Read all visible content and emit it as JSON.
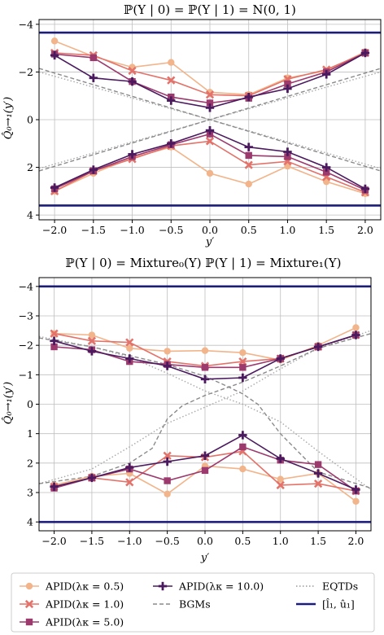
{
  "chart_data": [
    {
      "type": "line",
      "title": "ℙ(Y | 0) = ℙ(Y | 1) = N(0, 1)",
      "xlabel": "y′",
      "ylabel": "Q̂₀→₁(y′)",
      "x": [
        -2.0,
        -1.5,
        -1.0,
        -0.5,
        0.0,
        0.5,
        1.0,
        1.5,
        2.0
      ],
      "xticks": [
        "−2.0",
        "−1.5",
        "−1.0",
        "−0.5",
        "0.0",
        "0.5",
        "1.0",
        "1.5",
        "2.0"
      ],
      "yticks": [
        "−4",
        "−2",
        "0",
        "2",
        "4"
      ],
      "xlim": [
        -2.2,
        2.2
      ],
      "ylim": [
        -4.2,
        4.2
      ],
      "grid": true,
      "series": [
        {
          "name": "APID(λκ = 0.5)",
          "color": "#f2b48a",
          "marker": "circle",
          "upper": [
            3.3,
            2.65,
            2.2,
            2.4,
            1.15,
            1.05,
            1.75,
            2.05,
            2.85
          ],
          "lower": [
            -3.0,
            -2.25,
            -1.6,
            -1.15,
            -2.25,
            -2.7,
            -1.95,
            -2.6,
            -3.1
          ]
        },
        {
          "name": "APID(λκ = 1.0)",
          "color": "#e3736a",
          "marker": "x",
          "upper": [
            2.8,
            2.7,
            2.05,
            1.65,
            1.05,
            1.0,
            1.7,
            2.1,
            2.8
          ],
          "lower": [
            -3.0,
            -2.15,
            -1.65,
            -1.1,
            -0.9,
            -1.9,
            -1.75,
            -2.4,
            -3.05
          ]
        },
        {
          "name": "APID(λκ = 5.0)",
          "color": "#9c3a6e",
          "marker": "square",
          "upper": [
            2.75,
            2.6,
            1.6,
            0.95,
            0.7,
            0.9,
            1.5,
            2.0,
            2.8
          ],
          "lower": [
            -2.9,
            -2.15,
            -1.55,
            -1.05,
            -0.6,
            -1.5,
            -1.55,
            -2.2,
            -2.95
          ]
        },
        {
          "name": "APID(λκ = 10.0)",
          "color": "#4b1a5e",
          "marker": "plus",
          "upper": [
            2.7,
            1.75,
            1.6,
            0.8,
            0.5,
            0.95,
            1.3,
            1.9,
            2.8
          ],
          "lower": [
            -2.85,
            -2.1,
            -1.45,
            -1.0,
            -0.45,
            -1.15,
            -1.35,
            -2.0,
            -2.9
          ]
        }
      ],
      "bgm_upper_x": [
        -2.2,
        0.0,
        2.2
      ],
      "bgm_upper_y": [
        2.15,
        0.0,
        2.15
      ],
      "bgm_lower_x": [
        -2.2,
        0.0,
        2.2
      ],
      "bgm_lower_y": [
        -2.15,
        0.0,
        -2.15
      ],
      "eqtd_upper_x": [
        -2.2,
        0.0,
        2.2
      ],
      "eqtd_upper_y": [
        2.0,
        0.0,
        2.0
      ],
      "eqtd_lower_x": [
        -2.2,
        0.0,
        2.2
      ],
      "eqtd_lower_y": [
        -2.05,
        0.0,
        -2.05
      ],
      "bound_upper": 3.65,
      "bound_lower": -3.6
    },
    {
      "type": "line",
      "title": "ℙ(Y | 0) = Mixture₀(Y)          ℙ(Y | 1) = Mixture₁(Y)",
      "xlabel": "y′",
      "ylabel": "Q̂₀→₁(y′)",
      "x": [
        -2.0,
        -1.5,
        -1.0,
        -0.5,
        0.0,
        0.5,
        1.0,
        1.5,
        2.0
      ],
      "xticks": [
        "−2.0",
        "−1.5",
        "−1.0",
        "−0.5",
        "0.0",
        "0.5",
        "1.0",
        "1.5",
        "2.0"
      ],
      "yticks": [
        "−4",
        "−3",
        "−2",
        "−1",
        "0",
        "1",
        "2",
        "3",
        "4"
      ],
      "xlim": [
        -2.2,
        2.2
      ],
      "ylim": [
        -4.3,
        4.3
      ],
      "grid": true,
      "series": [
        {
          "name": "APID(λκ = 0.5)",
          "color": "#f2b48a",
          "marker": "circle",
          "upper": [
            2.4,
            2.35,
            1.9,
            1.8,
            1.82,
            1.75,
            1.5,
            2.0,
            2.6
          ],
          "lower": [
            -2.75,
            -2.45,
            -2.35,
            -3.05,
            -2.1,
            -2.2,
            -2.55,
            -2.35,
            -3.3
          ]
        },
        {
          "name": "APID(λκ = 1.0)",
          "color": "#e3736a",
          "marker": "x",
          "upper": [
            2.4,
            2.15,
            2.1,
            1.45,
            1.3,
            1.45,
            1.55,
            1.95,
            2.35
          ],
          "lower": [
            -2.8,
            -2.5,
            -2.65,
            -1.75,
            -1.8,
            -1.6,
            -2.75,
            -2.7,
            -2.95
          ]
        },
        {
          "name": "APID(λκ = 5.0)",
          "color": "#9c3a6e",
          "marker": "square",
          "upper": [
            1.95,
            1.85,
            1.45,
            1.35,
            1.25,
            1.25,
            1.55,
            1.95,
            2.35
          ],
          "lower": [
            -2.85,
            -2.5,
            -2.2,
            -2.6,
            -2.25,
            -1.45,
            -1.9,
            -2.05,
            -2.95
          ]
        },
        {
          "name": "APID(λκ = 10.0)",
          "color": "#4b1a5e",
          "marker": "plus",
          "upper": [
            2.15,
            1.8,
            1.55,
            1.3,
            0.85,
            0.9,
            1.55,
            1.95,
            2.35
          ],
          "lower": [
            -2.8,
            -2.5,
            -2.15,
            -1.95,
            -1.75,
            -1.05,
            -1.85,
            -2.35,
            -2.9
          ]
        }
      ],
      "bgm_upper_x": [
        -2.2,
        -1.5,
        -1.0,
        -0.5,
        0.0,
        0.3,
        0.5,
        0.7,
        1.0,
        1.5,
        2.2
      ],
      "bgm_upper_y": [
        2.25,
        1.95,
        1.65,
        1.35,
        0.95,
        0.6,
        0.35,
        0.0,
        -1.0,
        -2.3,
        -2.85
      ],
      "bgm_lower_x": [
        -2.2,
        -1.5,
        -1.0,
        -0.7,
        -0.5,
        -0.3,
        0.0,
        0.5,
        1.0,
        1.5,
        2.2
      ],
      "bgm_lower_y": [
        -2.7,
        -2.45,
        -2.0,
        -1.5,
        -0.5,
        -0.05,
        0.3,
        0.75,
        1.3,
        1.9,
        2.4
      ],
      "eqtd_upper_x": [
        -2.2,
        -1.5,
        -1.0,
        -0.5,
        0.0,
        0.5,
        1.0,
        1.5,
        2.2
      ],
      "eqtd_upper_y": [
        2.3,
        1.95,
        1.6,
        1.05,
        0.45,
        0.0,
        -0.6,
        -1.6,
        -2.9
      ],
      "eqtd_lower_x": [
        -2.2,
        -1.5,
        -1.0,
        -0.5,
        0.0,
        0.5,
        1.0,
        1.5,
        2.2
      ],
      "eqtd_lower_y": [
        -2.7,
        -2.2,
        -1.45,
        -0.65,
        -0.1,
        0.45,
        1.2,
        1.9,
        2.5
      ],
      "bound_upper": 4.0,
      "bound_lower": -4.0
    }
  ],
  "legend": {
    "items": [
      {
        "label": "APID(λκ = 0.5)",
        "kind": "circle",
        "color": "#f2b48a"
      },
      {
        "label": "APID(λκ = 10.0)",
        "kind": "plus",
        "color": "#4b1a5e"
      },
      {
        "label": "EQTDs",
        "kind": "dotted",
        "color": "#999999"
      },
      {
        "label": "APID(λκ = 1.0)",
        "kind": "x",
        "color": "#e3736a"
      },
      {
        "label": "BGMs",
        "kind": "dashed",
        "color": "#8a8a8a"
      },
      {
        "label": "[l̂₁, û₁]",
        "kind": "solid",
        "color": "#1c1c7a"
      },
      {
        "label": "APID(λκ = 5.0)",
        "kind": "square",
        "color": "#9c3a6e"
      }
    ]
  }
}
